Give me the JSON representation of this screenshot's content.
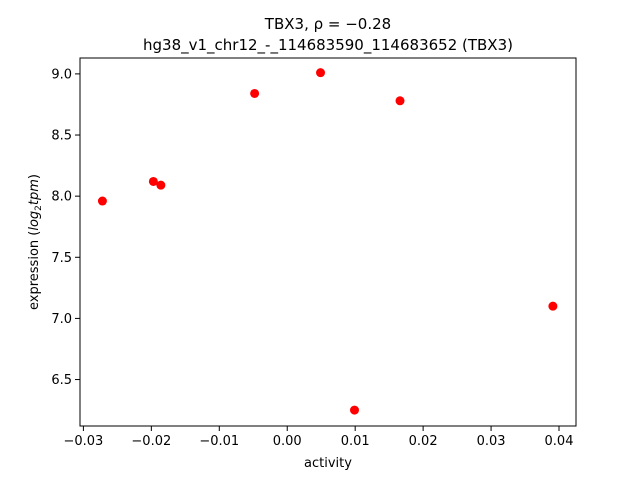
{
  "chart_data": {
    "type": "scatter",
    "title_line1": "TBX3, ρ = −0.28",
    "title_line2": "hg38_v1_chr12_-_114683590_114683652 (TBX3)",
    "xlabel": "activity",
    "ylabel_prefix": "expression (",
    "ylabel_math": "log",
    "ylabel_sub": "2",
    "ylabel_math2": "tpm",
    "ylabel_suffix": ")",
    "xlim": [
      -0.0305,
      0.0425
    ],
    "ylim": [
      6.12,
      9.13
    ],
    "x_ticks": [
      -0.03,
      -0.02,
      -0.01,
      0.0,
      0.01,
      0.02,
      0.03,
      0.04
    ],
    "x_tick_labels": [
      "−0.03",
      "−0.02",
      "−0.01",
      "0.00",
      "0.01",
      "0.02",
      "0.03",
      "0.04"
    ],
    "y_ticks": [
      6.5,
      7.0,
      7.5,
      8.0,
      8.5,
      9.0
    ],
    "y_tick_labels": [
      "6.5",
      "7.0",
      "7.5",
      "8.0",
      "8.5",
      "9.0"
    ],
    "marker_color": "#ff0000",
    "points": [
      {
        "x": -0.0272,
        "y": 7.96
      },
      {
        "x": -0.0197,
        "y": 8.12
      },
      {
        "x": -0.0186,
        "y": 8.09
      },
      {
        "x": -0.0048,
        "y": 8.84
      },
      {
        "x": 0.0049,
        "y": 9.01
      },
      {
        "x": 0.0099,
        "y": 6.25
      },
      {
        "x": 0.0166,
        "y": 8.78
      },
      {
        "x": 0.0391,
        "y": 7.1
      }
    ]
  }
}
